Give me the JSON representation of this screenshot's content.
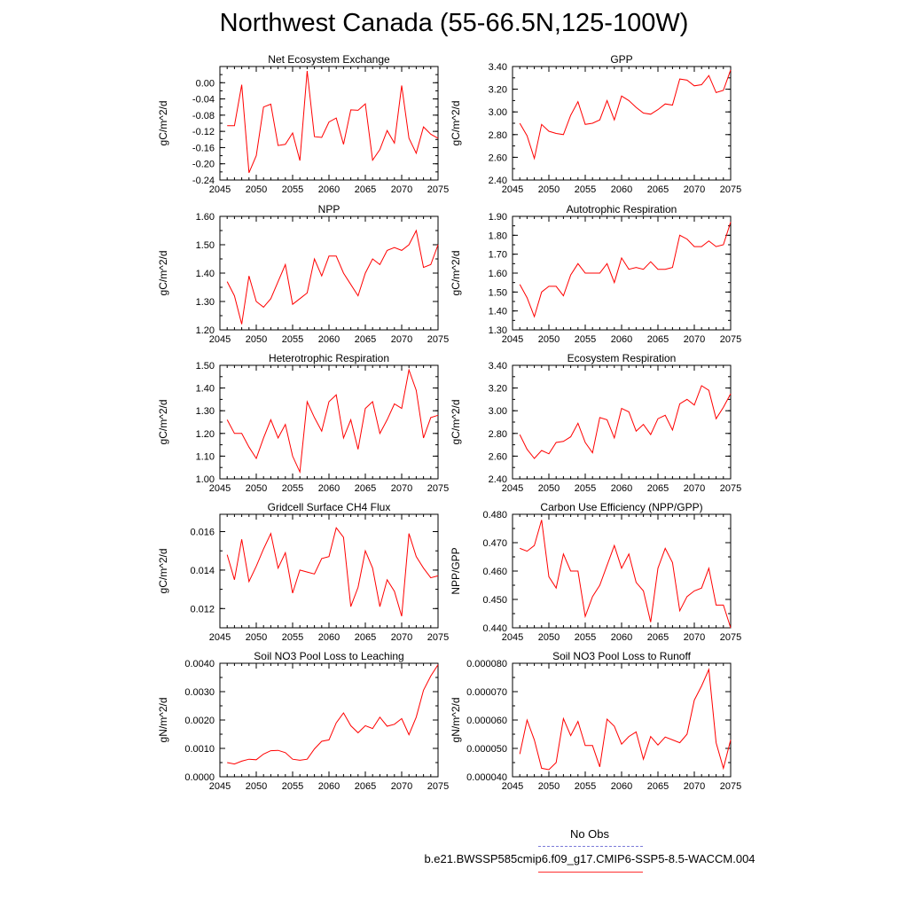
{
  "title": "Northwest Canada (55-66.5N,125-100W)",
  "legend": {
    "obs_label": "No Obs",
    "obs_color": "#7b7bd8",
    "case_label": "b.e21.BWSSP585cmip6.f09_g17.CMIP6-SSP5-8.5-WACCM.004",
    "case_color": "#ff0000"
  },
  "chart_data": [
    {
      "type": "line",
      "title": "Net Ecosystem Exchange",
      "xlabel": "",
      "ylabel": "gC/m^2/d",
      "xlim": [
        2045,
        2075
      ],
      "ylim": [
        -0.24,
        0.04
      ],
      "xticks": [
        "2045",
        "2050",
        "2055",
        "2060",
        "2065",
        "2070",
        "2075"
      ],
      "yticks": [
        "0.00",
        "-0.04",
        "-0.08",
        "-0.12",
        "-0.16",
        "-0.20",
        "-0.24"
      ],
      "x": [
        2046,
        2047,
        2048,
        2049,
        2050,
        2051,
        2052,
        2053,
        2054,
        2055,
        2056,
        2057,
        2058,
        2059,
        2060,
        2061,
        2062,
        2063,
        2064,
        2065,
        2066,
        2067,
        2068,
        2069,
        2070,
        2071,
        2072,
        2073,
        2074,
        2075
      ],
      "values": [
        -0.106,
        -0.106,
        -0.005,
        -0.222,
        -0.18,
        -0.06,
        -0.053,
        -0.155,
        -0.152,
        -0.124,
        -0.192,
        0.029,
        -0.133,
        -0.135,
        -0.097,
        -0.087,
        -0.152,
        -0.067,
        -0.068,
        -0.052,
        -0.191,
        -0.165,
        -0.118,
        -0.149,
        -0.007,
        -0.137,
        -0.174,
        -0.109,
        -0.127,
        -0.137
      ],
      "color": "#ff0000"
    },
    {
      "type": "line",
      "title": "GPP",
      "xlabel": "",
      "ylabel": "gC/m^2/d",
      "xlim": [
        2045,
        2075
      ],
      "ylim": [
        2.4,
        3.4
      ],
      "xticks": [
        "2045",
        "2050",
        "2055",
        "2060",
        "2065",
        "2070",
        "2075"
      ],
      "yticks": [
        "3.40",
        "3.20",
        "3.00",
        "2.80",
        "2.60",
        "2.40"
      ],
      "x": [
        2046,
        2047,
        2048,
        2049,
        2050,
        2051,
        2052,
        2053,
        2054,
        2055,
        2056,
        2057,
        2058,
        2059,
        2060,
        2061,
        2062,
        2063,
        2064,
        2065,
        2066,
        2067,
        2068,
        2069,
        2070,
        2071,
        2072,
        2073,
        2074,
        2075
      ],
      "values": [
        2.9,
        2.79,
        2.59,
        2.89,
        2.83,
        2.81,
        2.8,
        2.97,
        3.09,
        2.89,
        2.9,
        2.93,
        3.1,
        2.93,
        3.14,
        3.1,
        3.04,
        2.99,
        2.98,
        3.02,
        3.07,
        3.06,
        3.29,
        3.28,
        3.23,
        3.24,
        3.32,
        3.17,
        3.19,
        3.37
      ],
      "color": "#ff0000"
    },
    {
      "type": "line",
      "title": "NPP",
      "xlabel": "",
      "ylabel": "gC/m^2/d",
      "xlim": [
        2045,
        2075
      ],
      "ylim": [
        1.2,
        1.6
      ],
      "xticks": [
        "2045",
        "2050",
        "2055",
        "2060",
        "2065",
        "2070",
        "2075"
      ],
      "yticks": [
        "1.60",
        "1.50",
        "1.40",
        "1.30",
        "1.20"
      ],
      "x": [
        2046,
        2047,
        2048,
        2049,
        2050,
        2051,
        2052,
        2053,
        2054,
        2055,
        2056,
        2057,
        2058,
        2059,
        2060,
        2061,
        2062,
        2063,
        2064,
        2065,
        2066,
        2067,
        2068,
        2069,
        2070,
        2071,
        2072,
        2073,
        2074,
        2075
      ],
      "values": [
        1.37,
        1.32,
        1.22,
        1.39,
        1.3,
        1.28,
        1.31,
        1.37,
        1.43,
        1.29,
        1.31,
        1.33,
        1.45,
        1.39,
        1.46,
        1.46,
        1.4,
        1.36,
        1.32,
        1.4,
        1.45,
        1.43,
        1.48,
        1.49,
        1.48,
        1.5,
        1.55,
        1.42,
        1.43,
        1.5
      ],
      "color": "#ff0000"
    },
    {
      "type": "line",
      "title": "Autotrophic Respiration",
      "xlabel": "",
      "ylabel": "gC/m^2/d",
      "xlim": [
        2045,
        2075
      ],
      "ylim": [
        1.3,
        1.9
      ],
      "xticks": [
        "2045",
        "2050",
        "2055",
        "2060",
        "2065",
        "2070",
        "2075"
      ],
      "yticks": [
        "1.90",
        "1.80",
        "1.70",
        "1.60",
        "1.50",
        "1.40",
        "1.30"
      ],
      "x": [
        2046,
        2047,
        2048,
        2049,
        2050,
        2051,
        2052,
        2053,
        2054,
        2055,
        2056,
        2057,
        2058,
        2059,
        2060,
        2061,
        2062,
        2063,
        2064,
        2065,
        2066,
        2067,
        2068,
        2069,
        2070,
        2071,
        2072,
        2073,
        2074,
        2075
      ],
      "values": [
        1.54,
        1.47,
        1.37,
        1.5,
        1.53,
        1.53,
        1.48,
        1.59,
        1.65,
        1.6,
        1.6,
        1.6,
        1.65,
        1.55,
        1.68,
        1.62,
        1.63,
        1.62,
        1.66,
        1.62,
        1.62,
        1.63,
        1.8,
        1.78,
        1.74,
        1.74,
        1.77,
        1.74,
        1.75,
        1.87
      ],
      "color": "#ff0000"
    },
    {
      "type": "line",
      "title": "Heterotrophic Respiration",
      "xlabel": "",
      "ylabel": "gC/m^2/d",
      "xlim": [
        2045,
        2075
      ],
      "ylim": [
        1.0,
        1.5
      ],
      "xticks": [
        "2045",
        "2050",
        "2055",
        "2060",
        "2065",
        "2070",
        "2075"
      ],
      "yticks": [
        "1.50",
        "1.40",
        "1.30",
        "1.20",
        "1.10",
        "1.00"
      ],
      "x": [
        2046,
        2047,
        2048,
        2049,
        2050,
        2051,
        2052,
        2053,
        2054,
        2055,
        2056,
        2057,
        2058,
        2059,
        2060,
        2061,
        2062,
        2063,
        2064,
        2065,
        2066,
        2067,
        2068,
        2069,
        2070,
        2071,
        2072,
        2073,
        2074,
        2075
      ],
      "values": [
        1.26,
        1.2,
        1.2,
        1.14,
        1.09,
        1.18,
        1.26,
        1.18,
        1.24,
        1.1,
        1.03,
        1.34,
        1.27,
        1.21,
        1.34,
        1.37,
        1.18,
        1.26,
        1.13,
        1.31,
        1.34,
        1.2,
        1.26,
        1.33,
        1.31,
        1.48,
        1.39,
        1.18,
        1.27,
        1.28
      ],
      "color": "#ff0000"
    },
    {
      "type": "line",
      "title": "Ecosystem Respiration",
      "xlabel": "",
      "ylabel": "gC/m^2/d",
      "xlim": [
        2045,
        2075
      ],
      "ylim": [
        2.4,
        3.4
      ],
      "xticks": [
        "2045",
        "2050",
        "2055",
        "2060",
        "2065",
        "2070",
        "2075"
      ],
      "yticks": [
        "3.40",
        "3.20",
        "3.00",
        "2.80",
        "2.60",
        "2.40"
      ],
      "x": [
        2046,
        2047,
        2048,
        2049,
        2050,
        2051,
        2052,
        2053,
        2054,
        2055,
        2056,
        2057,
        2058,
        2059,
        2060,
        2061,
        2062,
        2063,
        2064,
        2065,
        2066,
        2067,
        2068,
        2069,
        2070,
        2071,
        2072,
        2073,
        2074,
        2075
      ],
      "values": [
        2.79,
        2.66,
        2.58,
        2.65,
        2.62,
        2.72,
        2.73,
        2.77,
        2.89,
        2.72,
        2.63,
        2.94,
        2.92,
        2.76,
        3.02,
        2.99,
        2.82,
        2.88,
        2.79,
        2.93,
        2.96,
        2.83,
        3.06,
        3.1,
        3.05,
        3.22,
        3.18,
        2.93,
        3.03,
        3.15
      ],
      "color": "#ff0000"
    },
    {
      "type": "line",
      "title": "Gridcell Surface CH4 Flux",
      "xlabel": "",
      "ylabel": "gC/m^2/d",
      "xlim": [
        2045,
        2075
      ],
      "ylim": [
        0.011,
        0.0169
      ],
      "xticks": [
        "2045",
        "2050",
        "2055",
        "2060",
        "2065",
        "2070",
        "2075"
      ],
      "yticks": [
        "0.016",
        "0.014",
        "0.012"
      ],
      "ytickvals": [
        0.016,
        0.014,
        0.012
      ],
      "x": [
        2046,
        2047,
        2048,
        2049,
        2050,
        2051,
        2052,
        2053,
        2054,
        2055,
        2056,
        2057,
        2058,
        2059,
        2060,
        2061,
        2062,
        2063,
        2064,
        2065,
        2066,
        2067,
        2068,
        2069,
        2070,
        2071,
        2072,
        2073,
        2074,
        2075
      ],
      "values": [
        0.0148,
        0.0135,
        0.0156,
        0.0134,
        0.0142,
        0.0151,
        0.0159,
        0.0141,
        0.0149,
        0.0128,
        0.014,
        0.0139,
        0.0138,
        0.0146,
        0.0147,
        0.0162,
        0.0157,
        0.0121,
        0.0131,
        0.015,
        0.0141,
        0.0121,
        0.0135,
        0.0129,
        0.0116,
        0.0159,
        0.0147,
        0.0141,
        0.0136,
        0.0137
      ],
      "color": "#ff0000"
    },
    {
      "type": "line",
      "title": "Carbon Use Efficiency (NPP/GPP)",
      "xlabel": "",
      "ylabel": "NPP/GPP",
      "xlim": [
        2045,
        2075
      ],
      "ylim": [
        0.44,
        0.48
      ],
      "xticks": [
        "2045",
        "2050",
        "2055",
        "2060",
        "2065",
        "2070",
        "2075"
      ],
      "yticks": [
        "0.480",
        "0.470",
        "0.460",
        "0.450",
        "0.440"
      ],
      "x": [
        2046,
        2047,
        2048,
        2049,
        2050,
        2051,
        2052,
        2053,
        2054,
        2055,
        2056,
        2057,
        2058,
        2059,
        2060,
        2061,
        2062,
        2063,
        2064,
        2065,
        2066,
        2067,
        2068,
        2069,
        2070,
        2071,
        2072,
        2073,
        2074,
        2075
      ],
      "values": [
        0.468,
        0.467,
        0.469,
        0.478,
        0.458,
        0.454,
        0.466,
        0.46,
        0.46,
        0.444,
        0.451,
        0.455,
        0.462,
        0.469,
        0.461,
        0.466,
        0.456,
        0.453,
        0.442,
        0.461,
        0.468,
        0.463,
        0.446,
        0.451,
        0.453,
        0.454,
        0.461,
        0.448,
        0.448,
        0.44
      ],
      "color": "#ff0000"
    },
    {
      "type": "line",
      "title": "Soil NO3 Pool Loss to Leaching",
      "xlabel": "",
      "ylabel": "gN/m^2/d",
      "xlim": [
        2045,
        2075
      ],
      "ylim": [
        0.0,
        0.004
      ],
      "xticks": [
        "2045",
        "2050",
        "2055",
        "2060",
        "2065",
        "2070",
        "2075"
      ],
      "yticks": [
        "0.0040",
        "0.0030",
        "0.0020",
        "0.0010",
        "0.0000"
      ],
      "x": [
        2046,
        2047,
        2048,
        2049,
        2050,
        2051,
        2052,
        2053,
        2054,
        2055,
        2056,
        2057,
        2058,
        2059,
        2060,
        2061,
        2062,
        2063,
        2064,
        2065,
        2066,
        2067,
        2068,
        2069,
        2070,
        2071,
        2072,
        2073,
        2074,
        2075
      ],
      "values": [
        0.0005,
        0.00045,
        0.00055,
        0.00062,
        0.0006,
        0.0008,
        0.00092,
        0.00093,
        0.00085,
        0.00062,
        0.00058,
        0.00062,
        0.00098,
        0.00125,
        0.0013,
        0.0019,
        0.00225,
        0.0018,
        0.00155,
        0.0018,
        0.0017,
        0.0021,
        0.00178,
        0.00185,
        0.00205,
        0.00148,
        0.0021,
        0.00305,
        0.00355,
        0.00395
      ],
      "color": "#ff0000"
    },
    {
      "type": "line",
      "title": "Soil NO3 Pool Loss to Runoff",
      "xlabel": "",
      "ylabel": "gN/m^2/d",
      "xlim": [
        2045,
        2075
      ],
      "ylim": [
        4e-05,
        8e-05
      ],
      "xticks": [
        "2045",
        "2050",
        "2055",
        "2060",
        "2065",
        "2070",
        "2075"
      ],
      "yticks": [
        "0.000080",
        "0.000070",
        "0.000060",
        "0.000050",
        "0.000040"
      ],
      "x": [
        2046,
        2047,
        2048,
        2049,
        2050,
        2051,
        2052,
        2053,
        2054,
        2055,
        2056,
        2057,
        2058,
        2059,
        2060,
        2061,
        2062,
        2063,
        2064,
        2065,
        2066,
        2067,
        2068,
        2069,
        2070,
        2071,
        2072,
        2073,
        2074,
        2075
      ],
      "values": [
        4.8e-05,
        6e-05,
        5.3e-05,
        4.3e-05,
        4.25e-05,
        4.5e-05,
        6.05e-05,
        5.45e-05,
        5.95e-05,
        5.1e-05,
        5.1e-05,
        4.35e-05,
        6.03e-05,
        5.78e-05,
        5.15e-05,
        5.42e-05,
        5.58e-05,
        4.62e-05,
        5.42e-05,
        5.12e-05,
        5.4e-05,
        5.3e-05,
        5.2e-05,
        5.5e-05,
        6.7e-05,
        7.2e-05,
        7.78e-05,
        5.2e-05,
        4.3e-05,
        5.3e-05
      ],
      "color": "#ff0000"
    }
  ]
}
